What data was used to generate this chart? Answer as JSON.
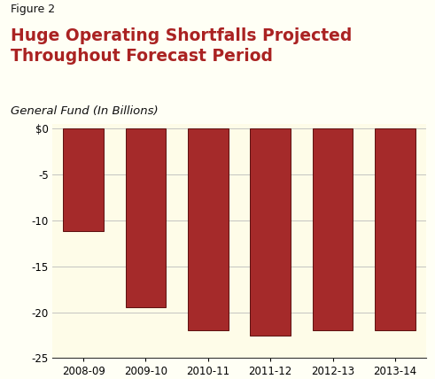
{
  "figure_label": "Figure 2",
  "title_line1": "Huge Operating Shortfalls Projected",
  "title_line2": "Throughout Forecast Period",
  "subtitle": "General Fund (In Billions)",
  "categories": [
    "2008-09",
    "2009-10",
    "2010-11",
    "2011-12",
    "2012-13",
    "2013-14"
  ],
  "values": [
    -11.2,
    -19.5,
    -22.0,
    -22.5,
    -22.0,
    -22.0
  ],
  "bar_color": "#A52A2A",
  "bar_edge_color": "#5C1010",
  "chart_bg_color": "#FEFCE8",
  "outer_bg_color": "#FFFFF5",
  "separator_color": "#111111",
  "ylim": [
    -25,
    0.5
  ],
  "yticks": [
    0,
    -5,
    -10,
    -15,
    -20,
    -25
  ],
  "ytick_labels": [
    "$0",
    "-5",
    "-10",
    "-15",
    "-20",
    "-25"
  ],
  "title_color": "#AA2222",
  "figure_label_color": "#111111",
  "subtitle_color": "#111111",
  "grid_color": "#BBBBBB",
  "figure_label_fontsize": 9,
  "title_fontsize": 13.5,
  "subtitle_fontsize": 9.5,
  "tick_fontsize": 8.5
}
